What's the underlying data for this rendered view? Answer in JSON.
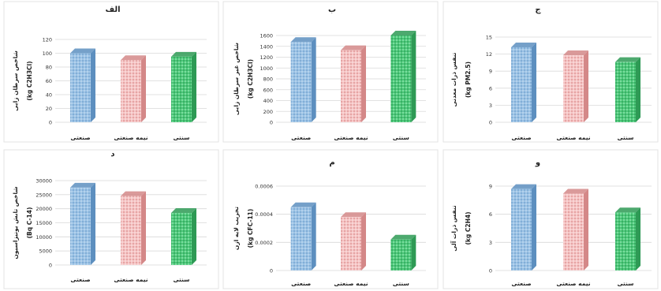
{
  "colors": {
    "series": [
      "#9cc3e6",
      "#f4b6b6",
      "#4cc97a"
    ],
    "series_dark": [
      "#5d8fbf",
      "#d48888",
      "#2e9a55"
    ],
    "grid": "#d9d9d9",
    "axis_text": "#333333"
  },
  "chart_data": [
    {
      "type": "bar",
      "title": "الف",
      "ylabel": "شاخص سرطان زایی",
      "unit": "(kg C2H3Cl)",
      "categories": [
        "صنعتی",
        "نیمه صنعتی",
        "سنتی"
      ],
      "values": [
        100,
        90,
        95
      ],
      "ylim": [
        0,
        120
      ],
      "yticks": [
        "0",
        "20",
        "40",
        "60",
        "80",
        "100",
        "120"
      ],
      "grid": true
    },
    {
      "type": "bar",
      "title": "ب",
      "ylabel": "شاخص غیر سرطان زایی",
      "unit": "(kg C2H3Cl)",
      "categories": [
        "صنعتی",
        "نیمه صنعتی",
        "سنتی"
      ],
      "values": [
        1480,
        1330,
        1600
      ],
      "ylim": [
        0,
        1600
      ],
      "yticks": [
        "0",
        "200",
        "400",
        "600",
        "800",
        "1000",
        "1200",
        "1400",
        "1600"
      ],
      "grid": true
    },
    {
      "type": "bar",
      "title": "ج",
      "ylabel": "تنفس ذرات معدنی",
      "unit": "(kg PM2.5)",
      "categories": [
        "صنعتی",
        "نیمه صنعتی",
        "سنتی"
      ],
      "values": [
        13.2,
        11.8,
        10.6
      ],
      "ylim": [
        0,
        15
      ],
      "yticks": [
        "0",
        "3",
        "6",
        "9",
        "12",
        "15"
      ],
      "grid": true
    },
    {
      "type": "bar",
      "title": "د",
      "ylabel": "شاخص تابش یونیزاسیون",
      "unit": "(Bq C-14)",
      "categories": [
        "صنعتی",
        "نیمه صنعتی",
        "سنتی"
      ],
      "values": [
        27500,
        24500,
        18500
      ],
      "ylim": [
        0,
        30000
      ],
      "yticks": [
        "0",
        "5000",
        "10000",
        "15000",
        "20000",
        "25000",
        "30000"
      ],
      "grid": true
    },
    {
      "type": "bar",
      "title": "م",
      "ylabel": "تخریب لایه ازن",
      "unit": "(kg CFC-11)",
      "categories": [
        "صنعتی",
        "نیمه صنعتی",
        "سنتی"
      ],
      "values": [
        0.00045,
        0.00038,
        0.00022
      ],
      "ylim": [
        0,
        0.0006
      ],
      "yticks": [
        "0",
        "0.0002",
        "0.0004",
        "0.0006"
      ],
      "grid": true
    },
    {
      "type": "bar",
      "title": "و",
      "ylabel": "تنفس ذرات آلی",
      "unit": "(kg C2H4)",
      "categories": [
        "صنعتی",
        "نیمه صنعتی",
        "سنتی"
      ],
      "values": [
        8.7,
        8.2,
        6.2
      ],
      "ylim": [
        0,
        9
      ],
      "yticks": [
        "0",
        "3",
        "6",
        "9"
      ],
      "grid": true
    }
  ]
}
